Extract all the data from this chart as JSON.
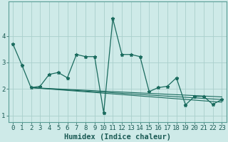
{
  "xlabel": "Humidex (Indice chaleur)",
  "bg_color": "#ceeae8",
  "grid_color": "#aacfcc",
  "line_color": "#1a6b5e",
  "spine_color": "#5a9e96",
  "xlim": [
    -0.5,
    23.5
  ],
  "ylim": [
    0.75,
    5.3
  ],
  "xticks": [
    0,
    1,
    2,
    3,
    4,
    5,
    6,
    7,
    8,
    9,
    10,
    11,
    12,
    13,
    14,
    15,
    16,
    17,
    18,
    19,
    20,
    21,
    22,
    23
  ],
  "yticks": [
    1,
    2,
    3,
    4
  ],
  "series0": [
    3.7,
    2.9,
    2.05,
    2.1,
    2.55,
    2.62,
    2.42,
    3.3,
    3.22,
    3.22,
    1.1,
    4.65,
    3.3,
    3.3,
    3.22,
    1.9,
    2.05,
    2.1,
    2.42,
    1.4,
    1.72,
    1.72,
    1.42,
    1.6
  ],
  "trend1_x": [
    2,
    23
  ],
  "trend1_y": [
    2.05,
    1.5
  ],
  "trend2_x": [
    2,
    23
  ],
  "trend2_y": [
    2.05,
    1.6
  ],
  "trend3_x": [
    2,
    23
  ],
  "trend3_y": [
    2.05,
    1.7
  ],
  "font_color": "#1a5a54",
  "xlabel_fontsize": 7.5,
  "tick_fontsize": 6.5
}
